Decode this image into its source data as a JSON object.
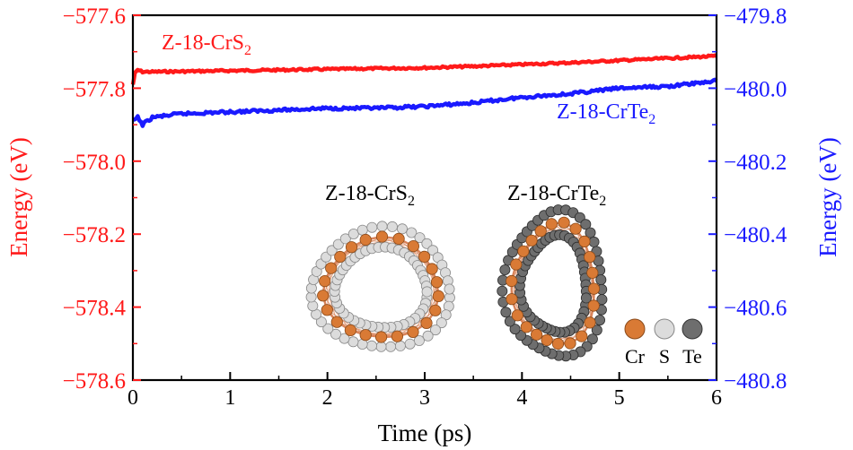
{
  "chart_data": {
    "type": "line",
    "title": "",
    "xlabel": "Time (ps)",
    "ylabel_left": "Energy (eV)",
    "ylabel_right": "Energy (eV)",
    "xlim": [
      0,
      6
    ],
    "ylim_left": [
      -578.6,
      -577.6
    ],
    "ylim_right": [
      -480.8,
      -479.8
    ],
    "x_ticks": [
      0,
      1,
      2,
      3,
      4,
      5,
      6
    ],
    "x_tick_labels": [
      "0",
      "1",
      "2",
      "3",
      "4",
      "5",
      "6"
    ],
    "y_left_ticks": [
      -577.6,
      -577.8,
      -578.0,
      -578.2,
      -578.4,
      -578.6
    ],
    "y_left_tick_labels": [
      "−577.6",
      "−577.8",
      "−578.0",
      "−578.2",
      "−578.4",
      "−578.6"
    ],
    "y_right_ticks": [
      -479.8,
      -480.0,
      -480.2,
      -480.4,
      -480.6,
      -480.8
    ],
    "y_right_tick_labels": [
      "−479.8",
      "−480.0",
      "−480.2",
      "−480.4",
      "−480.6",
      "−480.8"
    ],
    "grid": false,
    "series": [
      {
        "name": "Z-18-CrS",
        "subscript": "2",
        "axis": "left",
        "color": "#ff1a1a",
        "x": [
          0,
          0.02,
          0.05,
          0.1,
          0.2,
          0.5,
          1.0,
          1.5,
          2.0,
          2.5,
          3.0,
          3.5,
          4.0,
          4.5,
          5.0,
          5.5,
          6.0
        ],
        "values": [
          -577.79,
          -577.76,
          -577.75,
          -577.755,
          -577.755,
          -577.754,
          -577.752,
          -577.75,
          -577.748,
          -577.746,
          -577.744,
          -577.74,
          -577.735,
          -577.73,
          -577.724,
          -577.718,
          -577.712
        ]
      },
      {
        "name": "Z-18-CrTe",
        "subscript": "2",
        "axis": "right",
        "color": "#1a1aff",
        "x": [
          0,
          0.05,
          0.1,
          0.2,
          0.5,
          1.0,
          1.5,
          2.0,
          2.5,
          3.0,
          3.5,
          4.0,
          4.5,
          5.0,
          5.5,
          6.0
        ],
        "values": [
          -480.09,
          -480.08,
          -480.1,
          -480.08,
          -480.07,
          -480.065,
          -480.06,
          -480.055,
          -480.055,
          -480.05,
          -480.04,
          -480.025,
          -480.015,
          -480.0,
          -479.995,
          -479.98
        ]
      }
    ],
    "colors": {
      "left_axis": "#ff1a1a",
      "right_axis": "#1a1aff",
      "cr_atom": "#d97a35",
      "s_atom": "#cccccc",
      "te_atom": "#6e6e6e",
      "bond": "#d9845a"
    },
    "insets": [
      {
        "label": "Z-18-CrS",
        "subscript": "2",
        "shell_atom": "s"
      },
      {
        "label": "Z-18-CrTe",
        "subscript": "2",
        "shell_atom": "te"
      }
    ],
    "atom_legend": [
      {
        "symbol": "Cr",
        "color_key": "cr_atom"
      },
      {
        "symbol": "S",
        "color_key": "s_atom"
      },
      {
        "symbol": "Te",
        "color_key": "te_atom"
      }
    ]
  }
}
